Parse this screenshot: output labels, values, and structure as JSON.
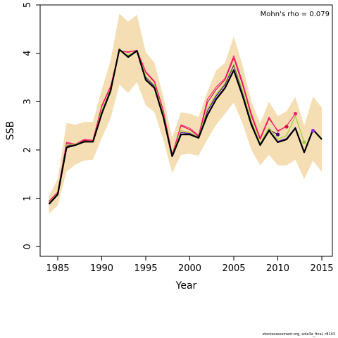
{
  "chart_data": {
    "type": "line",
    "xlabel": "Year",
    "ylabel": "SSB",
    "xlim": [
      1983,
      2016.2
    ],
    "ylim": [
      -0.2,
      5
    ],
    "xticks": [
      1985,
      1990,
      1995,
      2000,
      2005,
      2010,
      2015
    ],
    "yticks": [
      0,
      1,
      2,
      3,
      4,
      5
    ],
    "annotation": "Mohn's rho = 0.079",
    "band_color": "#f5deb3",
    "band": {
      "x": [
        1984,
        1985,
        1986,
        1987,
        1988,
        1989,
        1990,
        1991,
        1992,
        1993,
        1994,
        1995,
        1996,
        1997,
        1998,
        1999,
        2000,
        2001,
        2002,
        2003,
        2004,
        2005,
        2006,
        2007,
        2008,
        2009,
        2010,
        2011,
        2012,
        2013,
        2014,
        2015
      ],
      "upper": [
        1.05,
        1.4,
        2.56,
        2.52,
        2.58,
        2.58,
        3.25,
        3.85,
        4.82,
        4.65,
        4.8,
        4.02,
        3.8,
        3.1,
        2.25,
        2.78,
        2.75,
        2.68,
        3.2,
        3.65,
        3.8,
        4.35,
        3.75,
        3.0,
        2.55,
        3.0,
        2.7,
        2.8,
        3.1,
        2.5,
        3.1,
        2.88
      ],
      "lower": [
        0.68,
        0.85,
        1.55,
        1.7,
        1.78,
        1.8,
        2.25,
        2.65,
        3.35,
        3.18,
        3.4,
        2.92,
        2.78,
        2.2,
        1.52,
        1.9,
        1.92,
        1.88,
        2.22,
        2.52,
        2.75,
        2.98,
        2.55,
        2.0,
        1.68,
        1.9,
        1.68,
        1.68,
        1.8,
        1.4,
        1.78,
        1.55
      ]
    },
    "series": [
      {
        "color": "#000000",
        "x": [
          1984,
          1985,
          1986,
          1987,
          1988,
          1989,
          1990,
          1991,
          1992,
          1993,
          1994,
          1995,
          1996,
          1997,
          1998,
          1999,
          2000,
          2001,
          2002,
          2003,
          2004,
          2005,
          2006,
          2007,
          2008,
          2009,
          2010,
          2011,
          2012,
          2013,
          2014,
          2015
        ],
        "values": [
          0.88,
          1.08,
          2.05,
          2.1,
          2.17,
          2.17,
          2.75,
          3.22,
          4.08,
          3.92,
          4.05,
          3.45,
          3.28,
          2.68,
          1.87,
          2.32,
          2.32,
          2.25,
          2.72,
          3.05,
          3.28,
          3.65,
          3.12,
          2.52,
          2.1,
          2.4,
          2.16,
          2.22,
          2.45,
          1.95,
          2.42,
          2.22
        ]
      },
      {
        "color": "#4b0082",
        "x": [
          1984,
          1985,
          1986,
          1987,
          1988,
          1989,
          1990,
          1991,
          1992,
          1993,
          1994,
          1995,
          1996,
          1997,
          1998,
          1999,
          2000,
          2001,
          2002,
          2003,
          2004,
          2005,
          2006,
          2007,
          2008,
          2009,
          2010
        ],
        "values": [
          0.9,
          1.1,
          2.08,
          2.12,
          2.19,
          2.18,
          2.78,
          3.25,
          4.06,
          3.95,
          4.06,
          3.5,
          3.32,
          2.72,
          1.88,
          2.36,
          2.34,
          2.27,
          2.8,
          3.12,
          3.35,
          3.75,
          3.2,
          2.56,
          2.12,
          2.42,
          2.32
        ]
      },
      {
        "color": "#d60a3c",
        "x": [
          1984,
          1985,
          1986,
          1987,
          1988,
          1989,
          1990,
          1991,
          1992,
          1993,
          1994,
          1995,
          1996,
          1997,
          1998,
          1999,
          2000,
          2001,
          2002,
          2003,
          2004,
          2005,
          2006,
          2007,
          2008,
          2009,
          2010,
          2011
        ],
        "values": [
          0.93,
          1.12,
          2.14,
          2.1,
          2.2,
          2.2,
          2.9,
          3.3,
          4.05,
          4.02,
          4.06,
          3.6,
          3.4,
          2.8,
          1.9,
          2.5,
          2.42,
          2.28,
          2.98,
          3.25,
          3.45,
          3.9,
          3.35,
          2.7,
          2.22,
          2.65,
          2.4,
          2.48
        ]
      },
      {
        "color": "#ff1a75",
        "x": [
          1984,
          1985,
          1986,
          1987,
          1988,
          1989,
          1990,
          1991,
          1992,
          1993,
          1994,
          1995,
          1996,
          1997,
          1998,
          1999,
          2000,
          2001,
          2002,
          2003,
          2004,
          2005,
          2006,
          2007,
          2008,
          2009,
          2010,
          2011,
          2012
        ],
        "values": [
          0.94,
          1.13,
          2.16,
          2.12,
          2.22,
          2.2,
          2.92,
          3.32,
          4.05,
          4.03,
          4.06,
          3.62,
          3.42,
          2.82,
          1.9,
          2.52,
          2.45,
          2.3,
          3.05,
          3.3,
          3.48,
          3.95,
          3.4,
          2.75,
          2.25,
          2.68,
          2.38,
          2.5,
          2.75
        ]
      },
      {
        "color": "#9acd32",
        "x": [
          1984,
          1985,
          1986,
          1987,
          1988,
          1989,
          1990,
          1991,
          1992,
          1993,
          1994,
          1995,
          1996,
          1997,
          1998,
          1999,
          2000,
          2001,
          2002,
          2003,
          2004,
          2005,
          2006,
          2007,
          2008,
          2009,
          2010,
          2011,
          2012,
          2013
        ],
        "values": [
          0.91,
          1.1,
          2.1,
          2.12,
          2.18,
          2.18,
          2.82,
          3.26,
          4.05,
          3.96,
          4.05,
          3.52,
          3.34,
          2.74,
          1.88,
          2.4,
          2.36,
          2.26,
          2.85,
          3.15,
          3.38,
          3.78,
          3.22,
          2.6,
          2.14,
          2.46,
          2.22,
          2.3,
          2.7,
          2.16
        ]
      },
      {
        "color": "#8a2be2",
        "x": [
          1984,
          1985,
          1986,
          1987,
          1988,
          1989,
          1990,
          1991,
          1992,
          1993,
          1994,
          1995,
          1996,
          1997,
          1998,
          1999,
          2000,
          2001,
          2002,
          2003,
          2004,
          2005,
          2006,
          2007,
          2008,
          2009,
          2010,
          2011,
          2012,
          2013,
          2014
        ],
        "values": [
          0.89,
          1.09,
          2.06,
          2.1,
          2.17,
          2.17,
          2.76,
          3.23,
          4.08,
          3.93,
          4.05,
          3.46,
          3.29,
          2.69,
          1.87,
          2.33,
          2.33,
          2.25,
          2.74,
          3.07,
          3.3,
          3.67,
          3.14,
          2.53,
          2.1,
          2.41,
          2.18,
          2.24,
          2.47,
          1.96,
          2.4
        ]
      }
    ],
    "endpoints": [
      {
        "x": 2010,
        "y": 2.32,
        "color": "#4b0082"
      },
      {
        "x": 2011,
        "y": 2.48,
        "color": "#d60a3c"
      },
      {
        "x": 2012,
        "y": 2.75,
        "color": "#ff1a75"
      },
      {
        "x": 2013,
        "y": 2.16,
        "color": "#9acd32"
      },
      {
        "x": 2014,
        "y": 2.4,
        "color": "#8a2be2"
      }
    ]
  },
  "footer": "stockassessment.org, sole3a_final, r8143"
}
